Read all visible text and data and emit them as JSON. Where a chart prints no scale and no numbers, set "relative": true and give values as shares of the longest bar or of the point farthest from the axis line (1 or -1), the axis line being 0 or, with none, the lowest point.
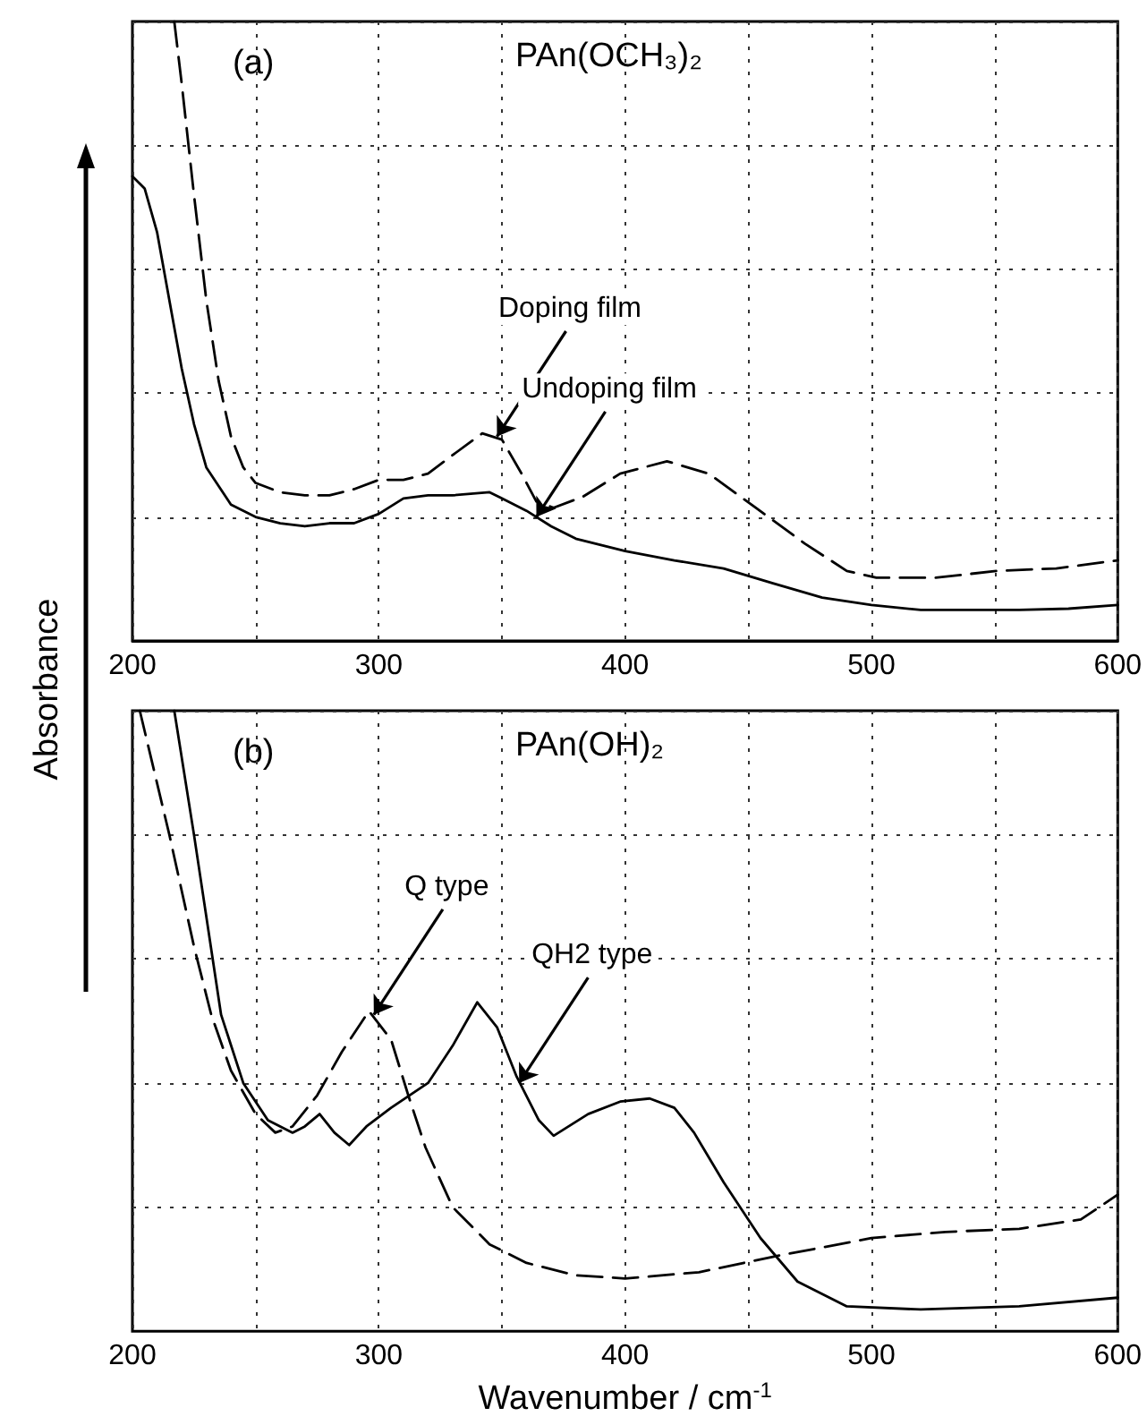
{
  "chart_data": [
    {
      "type": "line",
      "ylabel": "Absorbance",
      "relative": true,
      "xlim": [
        200,
        600
      ],
      "xticks": [
        200,
        {
          "value": 250,
          "label": null
        },
        300,
        {
          "value": 350,
          "label": null
        },
        400,
        {
          "value": 450,
          "label": null
        },
        500,
        {
          "value": 550,
          "label": null
        },
        600
      ],
      "grid": true,
      "marker": "none",
      "annotations": [
        "(a)",
        "PAn(OCH₃)₂",
        {
          "text": "Doping film",
          "x": 348,
          "y": 0.33
        },
        {
          "text": "Undoping film",
          "x": 364,
          "y": 0.2
        }
      ],
      "series": [
        {
          "color": "#000000",
          "line_style": "solid",
          "x": [
            200,
            205,
            210,
            215,
            220,
            225,
            230,
            240,
            250,
            260,
            270,
            280,
            290,
            300,
            310,
            320,
            330,
            345,
            350,
            360,
            370,
            380,
            400,
            420,
            440,
            450,
            460,
            480,
            500,
            520,
            540,
            560,
            580,
            600
          ],
          "values": [
            0.75,
            0.73,
            0.66,
            0.55,
            0.44,
            0.35,
            0.28,
            0.22,
            0.2,
            0.19,
            0.185,
            0.19,
            0.19,
            0.205,
            0.23,
            0.235,
            0.235,
            0.24,
            0.23,
            0.21,
            0.185,
            0.165,
            0.145,
            0.13,
            0.117,
            0.105,
            0.093,
            0.07,
            0.058,
            0.05,
            0.05,
            0.05,
            0.052,
            0.058
          ]
        },
        {
          "color": "#000000",
          "line_style": "dashed",
          "x": [
            217,
            220,
            225,
            230,
            235,
            240,
            245,
            250,
            260,
            270,
            280,
            290,
            300,
            310,
            320,
            330,
            342,
            350,
            358,
            364,
            371,
            383,
            398,
            417,
            434,
            453,
            473,
            490,
            502,
            526,
            551,
            575,
            600
          ],
          "values": [
            1.0,
            0.9,
            0.72,
            0.55,
            0.42,
            0.33,
            0.28,
            0.255,
            0.24,
            0.235,
            0.235,
            0.245,
            0.26,
            0.26,
            0.27,
            0.3,
            0.335,
            0.325,
            0.27,
            0.225,
            0.215,
            0.233,
            0.27,
            0.29,
            0.27,
            0.215,
            0.157,
            0.113,
            0.102,
            0.102,
            0.113,
            0.117,
            0.13
          ]
        }
      ]
    },
    {
      "type": "line",
      "xlabel": "Wavenumber / cm$^{-1}$",
      "relative": true,
      "xlim": [
        200,
        600
      ],
      "xticks": [
        200,
        {
          "value": 250,
          "label": null
        },
        300,
        {
          "value": 350,
          "label": null
        },
        400,
        {
          "value": 450,
          "label": null
        },
        500,
        {
          "value": 550,
          "label": null
        },
        600
      ],
      "grid": true,
      "marker": "none",
      "annotations": [
        "(b)",
        "PAn(OH)₂",
        {
          "text": "Q type",
          "x": 298,
          "y": 0.51
        },
        {
          "text": "QH2 type",
          "x": 357,
          "y": 0.4
        }
      ],
      "series": [
        {
          "color": "#000000",
          "line_style": "dashed",
          "x": [
            203,
            215,
            225,
            232,
            240,
            250,
            258,
            265,
            275,
            285,
            296,
            305,
            312,
            319,
            330,
            345,
            360,
            380,
            400,
            430,
            460,
            500,
            530,
            560,
            585,
            600
          ],
          "values": [
            1.0,
            0.8,
            0.62,
            0.51,
            0.42,
            0.35,
            0.32,
            0.33,
            0.38,
            0.45,
            0.516,
            0.47,
            0.38,
            0.296,
            0.2,
            0.14,
            0.11,
            0.09,
            0.085,
            0.095,
            0.12,
            0.15,
            0.16,
            0.165,
            0.18,
            0.22
          ]
        },
        {
          "color": "#000000",
          "line_style": "solid",
          "x": [
            217,
            225,
            236,
            245,
            255,
            265,
            270,
            276,
            282,
            288,
            295,
            305,
            320,
            330,
            340,
            348,
            356,
            365,
            371,
            385,
            398,
            410,
            420,
            428,
            440,
            455,
            470,
            490,
            520,
            560,
            600
          ],
          "values": [
            1.0,
            0.8,
            0.51,
            0.4,
            0.34,
            0.32,
            0.33,
            0.35,
            0.32,
            0.3,
            0.33,
            0.36,
            0.4,
            0.46,
            0.53,
            0.49,
            0.41,
            0.34,
            0.315,
            0.35,
            0.37,
            0.375,
            0.36,
            0.32,
            0.24,
            0.15,
            0.08,
            0.04,
            0.035,
            0.04,
            0.054
          ]
        }
      ]
    }
  ]
}
